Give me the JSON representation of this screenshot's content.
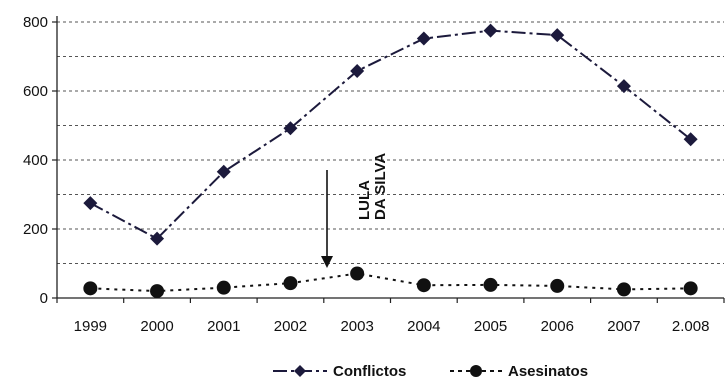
{
  "chart_data": {
    "type": "line",
    "title": "",
    "xlabel": "",
    "ylabel": "",
    "categories": [
      "1999",
      "2000",
      "2001",
      "2002",
      "2003",
      "2004",
      "2005",
      "2006",
      "2007",
      "2.008"
    ],
    "ylim": [
      0,
      800
    ],
    "yticks": [
      "0",
      "200",
      "400",
      "600",
      "800"
    ],
    "grid": "horizontal dashed",
    "legend_position": "bottom",
    "series": [
      {
        "name": "Conflictos",
        "marker": "diamond",
        "line_style": "dash-dot",
        "color": "#1c1a3c",
        "values": [
          275,
          172,
          366,
          492,
          658,
          752,
          775,
          762,
          614,
          460
        ]
      },
      {
        "name": "Asesinatos",
        "marker": "circle",
        "line_style": "dotted",
        "color": "#111111",
        "values": [
          28,
          20,
          30,
          43,
          71,
          37,
          38,
          35,
          25,
          28
        ]
      }
    ],
    "annotation": {
      "lines": [
        "LULA",
        "DA SILVA"
      ],
      "arrow_at_x": 2002.5
    }
  }
}
